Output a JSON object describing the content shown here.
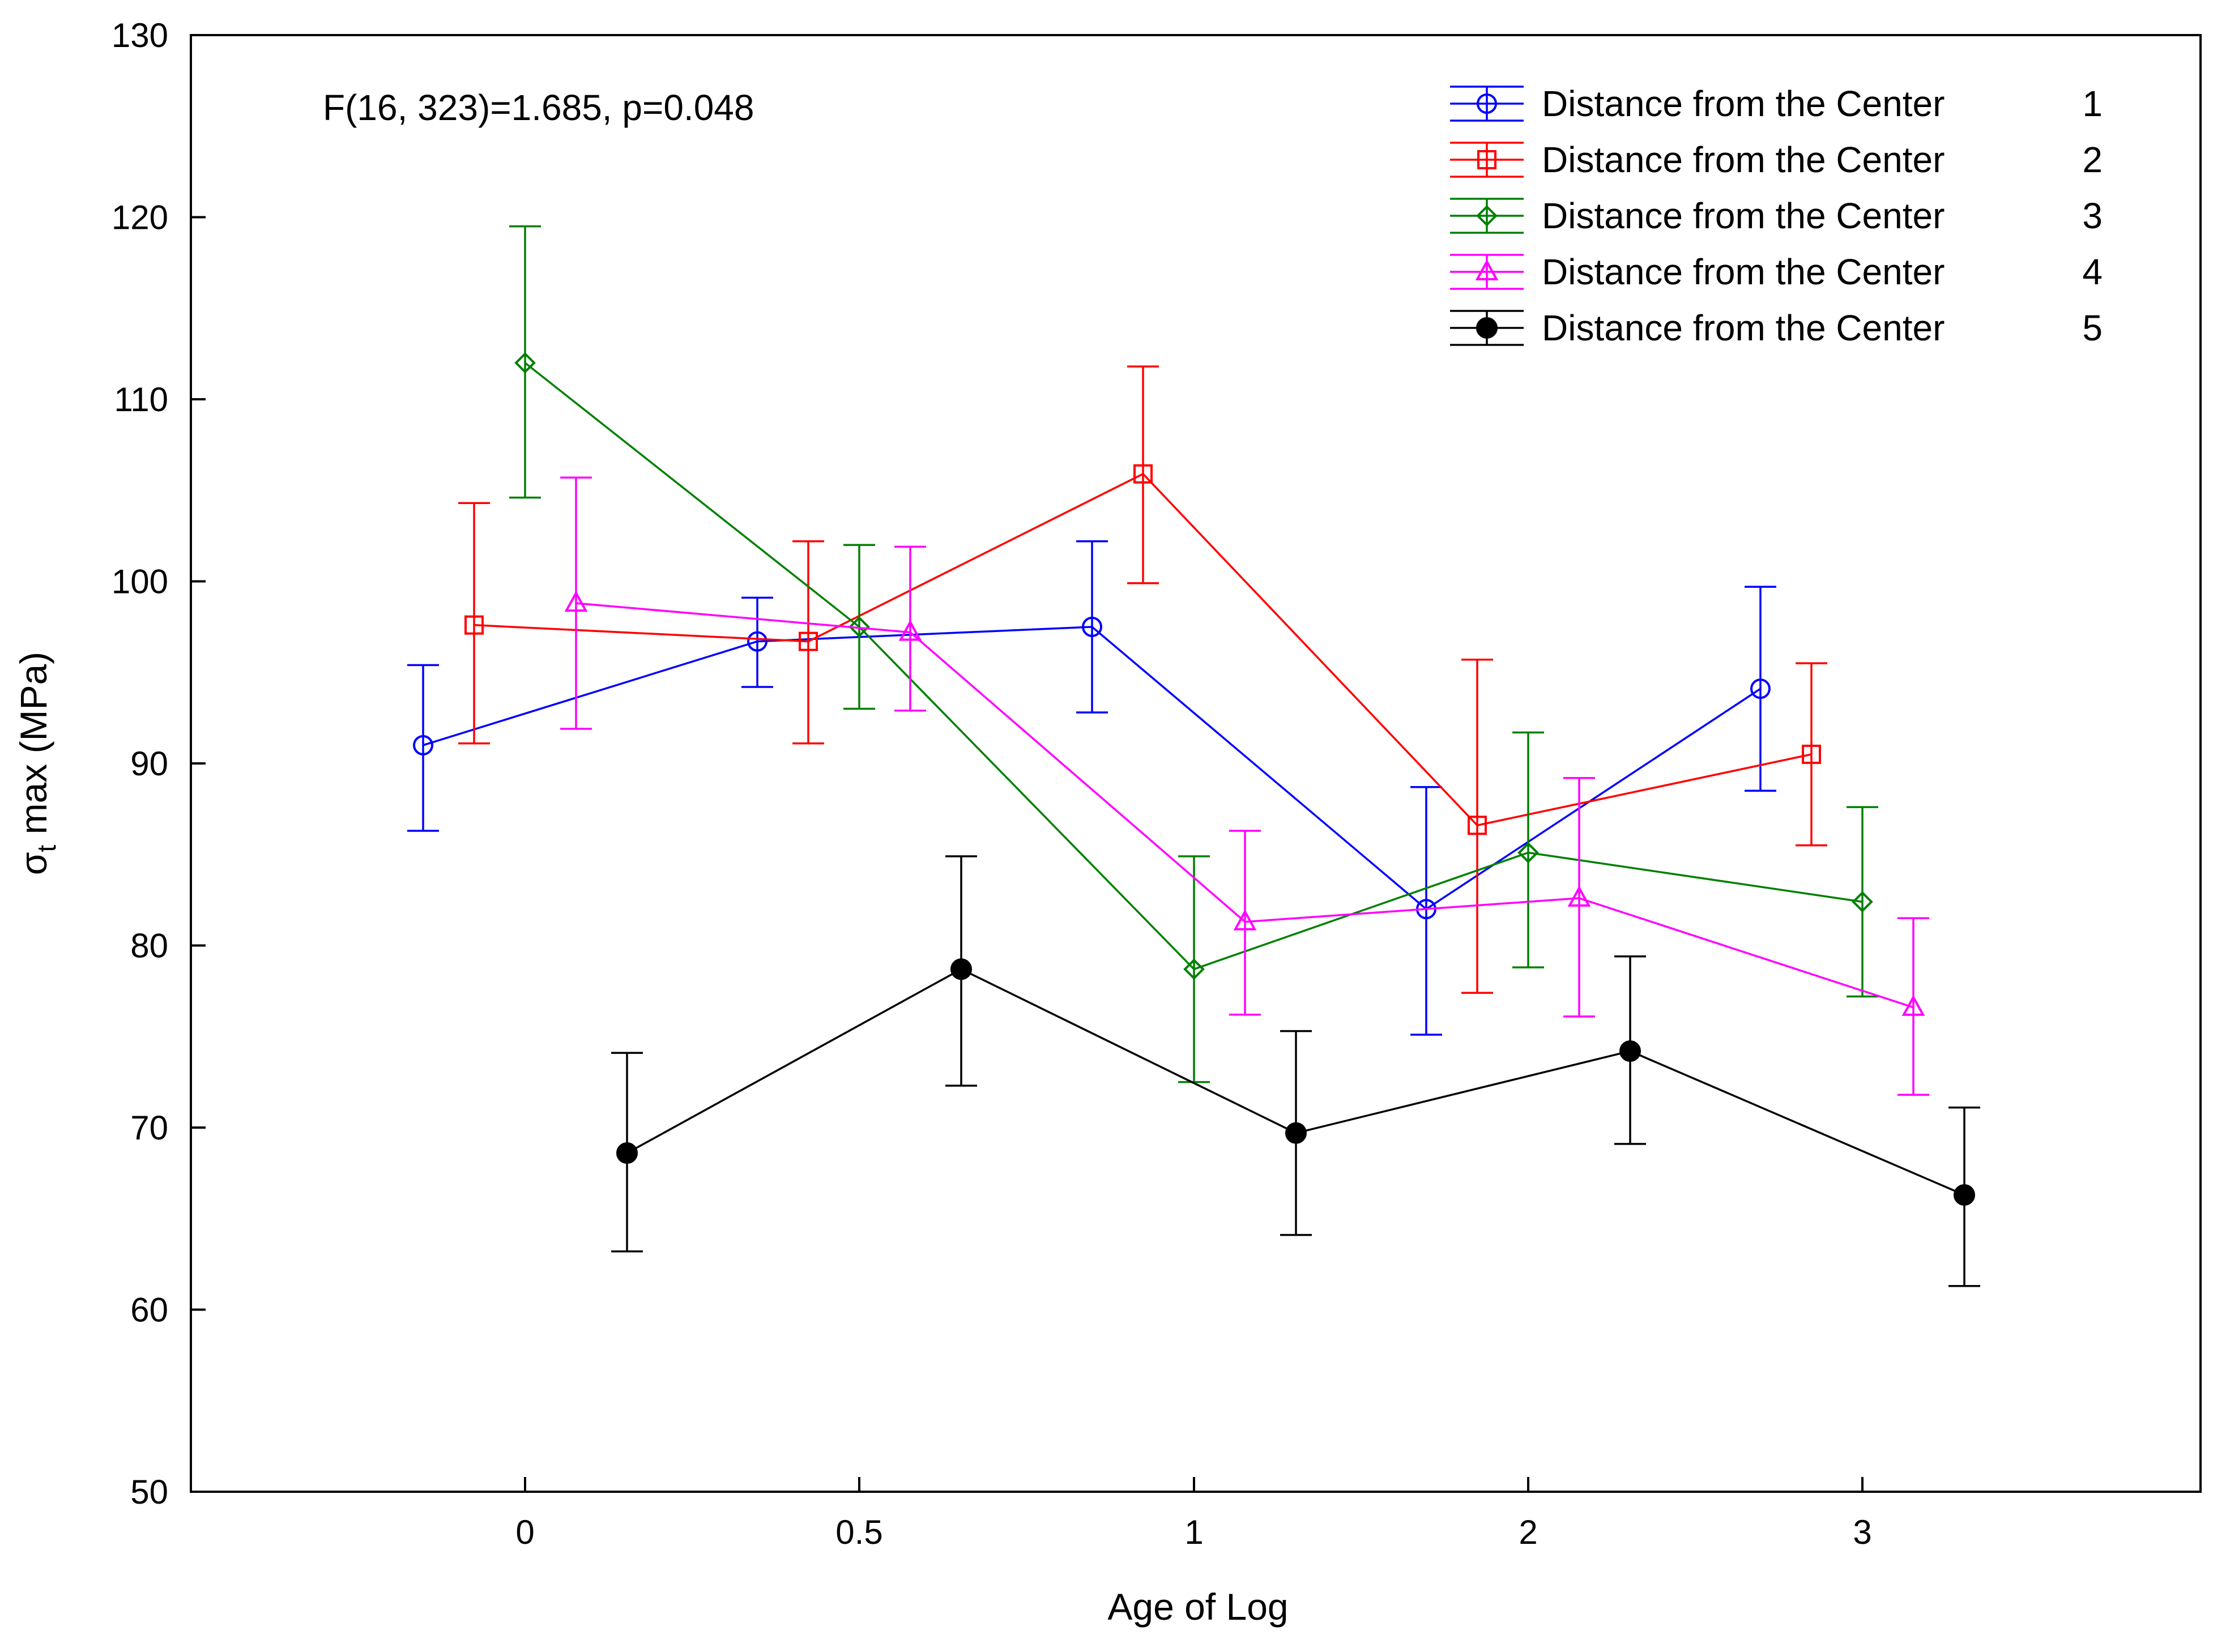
{
  "chart_data": {
    "type": "line",
    "annotation": "F(16, 323)=1.685, p=0.048",
    "xlabel": "Age of Log",
    "ylabel": "σt max (MPa)",
    "ylabel_main": "σ",
    "ylabel_sub": "t",
    "ylabel_rest": " max (MPa)",
    "categories": [
      "0",
      "0.5",
      "1",
      "2",
      "3"
    ],
    "ylim": [
      50,
      130
    ],
    "yticks": [
      50,
      60,
      70,
      80,
      90,
      100,
      110,
      120,
      130
    ],
    "grid": false,
    "legend_position": "top-right",
    "series": [
      {
        "name": "Distance from the Center",
        "level": "1",
        "color": "#0000ff",
        "marker": "circle-open",
        "values": [
          91.0,
          96.7,
          97.5,
          82.0,
          94.1
        ],
        "err_low": [
          86.3,
          94.2,
          92.8,
          75.1,
          88.5
        ],
        "err_high": [
          95.4,
          99.1,
          102.2,
          88.7,
          99.7
        ]
      },
      {
        "name": "Distance from the Center",
        "level": "2",
        "color": "#ff0000",
        "marker": "square-open",
        "values": [
          97.6,
          96.7,
          105.9,
          86.6,
          90.5
        ],
        "err_low": [
          91.1,
          91.1,
          99.9,
          77.4,
          85.5
        ],
        "err_high": [
          104.3,
          102.2,
          111.8,
          95.7,
          95.5
        ]
      },
      {
        "name": "Distance from the Center",
        "level": "3",
        "color": "#008000",
        "marker": "diamond-open",
        "values": [
          112.0,
          97.5,
          78.7,
          85.1,
          82.4
        ],
        "err_low": [
          104.6,
          93.0,
          72.5,
          78.8,
          77.2
        ],
        "err_high": [
          119.5,
          102.0,
          84.9,
          91.7,
          87.6
        ]
      },
      {
        "name": "Distance from the Center",
        "level": "4",
        "color": "#ff00ff",
        "marker": "triangle-open",
        "values": [
          98.8,
          97.2,
          81.3,
          82.6,
          76.6
        ],
        "err_low": [
          91.9,
          92.9,
          76.2,
          76.1,
          71.8
        ],
        "err_high": [
          105.7,
          101.9,
          86.3,
          89.2,
          81.5
        ]
      },
      {
        "name": "Distance from the Center",
        "level": "5",
        "color": "#000000",
        "marker": "circle-filled",
        "values": [
          68.6,
          78.7,
          69.7,
          74.2,
          66.3
        ],
        "err_low": [
          63.2,
          72.3,
          64.1,
          69.1,
          61.3
        ],
        "err_high": [
          74.1,
          84.9,
          75.3,
          79.4,
          71.1
        ]
      }
    ]
  }
}
